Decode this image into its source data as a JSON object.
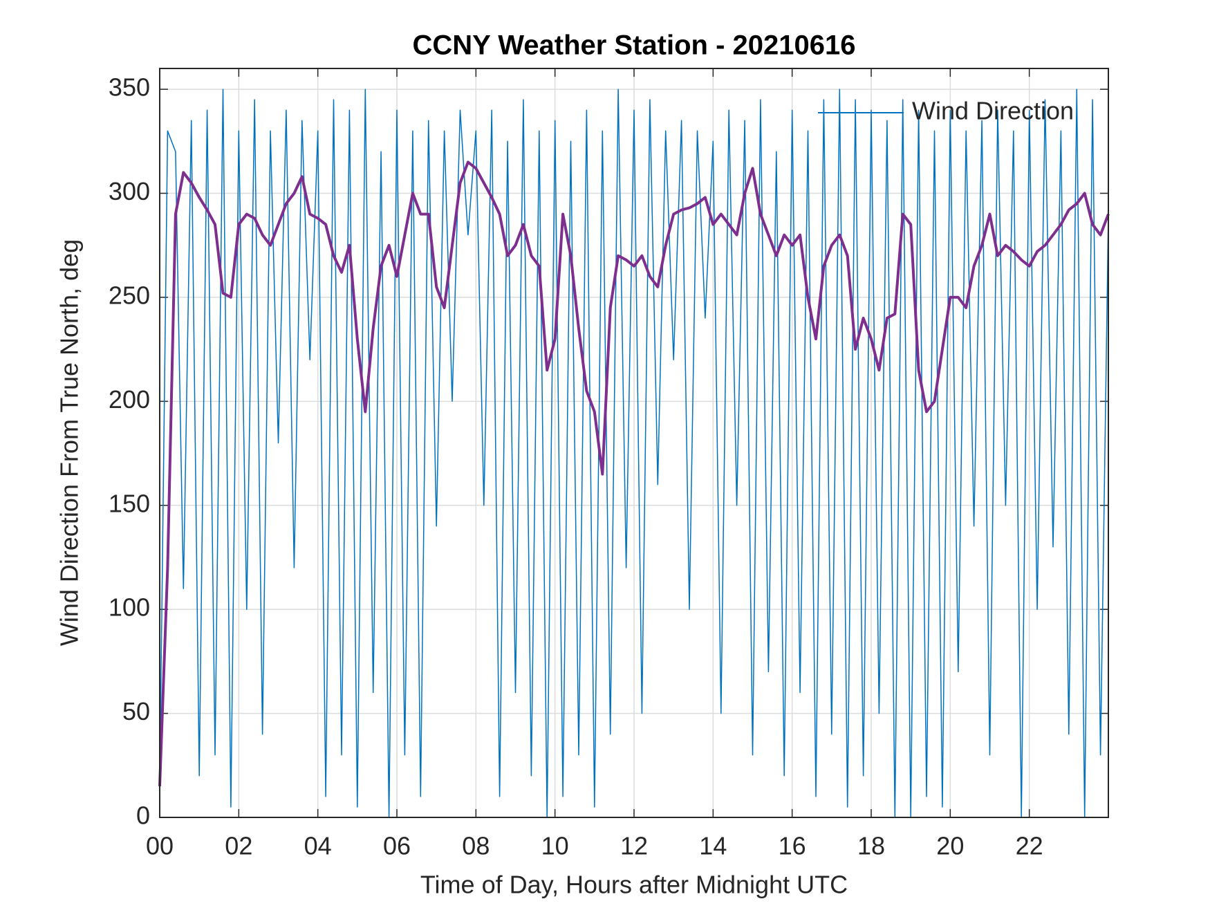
{
  "chart_data": {
    "type": "line",
    "title": "CCNY Weather Station - 20210616",
    "x_label": "Time of Day, Hours after Midnight UTC",
    "y_label": "Wind Direction From True North, deg",
    "xlim": [
      0,
      24
    ],
    "ylim": [
      0,
      360
    ],
    "xticks": [
      {
        "value": 0,
        "label": "00"
      },
      {
        "value": 2,
        "label": "02"
      },
      {
        "value": 4,
        "label": "04"
      },
      {
        "value": 6,
        "label": "06"
      },
      {
        "value": 8,
        "label": "08"
      },
      {
        "value": 10,
        "label": "10"
      },
      {
        "value": 12,
        "label": "12"
      },
      {
        "value": 14,
        "label": "14"
      },
      {
        "value": 16,
        "label": "16"
      },
      {
        "value": 18,
        "label": "18"
      },
      {
        "value": 20,
        "label": "20"
      },
      {
        "value": 22,
        "label": "22"
      }
    ],
    "yticks": [
      0,
      50,
      100,
      150,
      200,
      250,
      300,
      350
    ],
    "grid": true,
    "legend": "upper right",
    "x": [
      0,
      0.2,
      0.4,
      0.6,
      0.8,
      1,
      1.2,
      1.4,
      1.6,
      1.8,
      2,
      2.2,
      2.4,
      2.6,
      2.8,
      3,
      3.2,
      3.4,
      3.6,
      3.8,
      4,
      4.2,
      4.4,
      4.6,
      4.8,
      5,
      5.2,
      5.4,
      5.6,
      5.8,
      6,
      6.2,
      6.4,
      6.6,
      6.8,
      7,
      7.2,
      7.4,
      7.6,
      7.8,
      8,
      8.2,
      8.4,
      8.6,
      8.8,
      9,
      9.2,
      9.4,
      9.6,
      9.8,
      10,
      10.2,
      10.4,
      10.6,
      10.8,
      11,
      11.2,
      11.4,
      11.6,
      11.8,
      12,
      12.2,
      12.4,
      12.6,
      12.8,
      13,
      13.2,
      13.4,
      13.6,
      13.8,
      14,
      14.2,
      14.4,
      14.6,
      14.8,
      15,
      15.2,
      15.4,
      15.6,
      15.8,
      16,
      16.2,
      16.4,
      16.6,
      16.8,
      17,
      17.2,
      17.4,
      17.6,
      17.8,
      18,
      18.2,
      18.4,
      18.6,
      18.8,
      19,
      19.2,
      19.4,
      19.6,
      19.8,
      20,
      20.2,
      20.4,
      20.6,
      20.8,
      21,
      21.2,
      21.4,
      21.6,
      21.8,
      22,
      22.2,
      22.4,
      22.6,
      22.8,
      23,
      23.2,
      23.4,
      23.6,
      23.8,
      24
    ],
    "series": [
      {
        "name": "Wind Direction",
        "color": "#0072bd",
        "width": 1.5,
        "values": [
          15,
          330,
          320,
          110,
          335,
          20,
          340,
          30,
          350,
          5,
          330,
          100,
          345,
          40,
          330,
          180,
          340,
          120,
          335,
          220,
          330,
          10,
          345,
          30,
          340,
          5,
          350,
          60,
          320,
          0,
          340,
          30,
          330,
          10,
          335,
          140,
          330,
          200,
          340,
          280,
          330,
          150,
          340,
          10,
          325,
          60,
          345,
          20,
          330,
          0,
          335,
          10,
          325,
          30,
          340,
          5,
          330,
          40,
          350,
          120,
          340,
          50,
          345,
          160,
          330,
          220,
          335,
          100,
          330,
          240,
          325,
          50,
          340,
          150,
          335,
          30,
          345,
          70,
          320,
          20,
          340,
          60,
          330,
          10,
          345,
          40,
          350,
          5,
          345,
          20,
          340,
          50,
          335,
          0,
          345,
          0,
          340,
          10,
          330,
          5,
          340,
          70,
          330,
          140,
          335,
          30,
          340,
          150,
          330,
          0,
          340,
          100,
          345,
          130,
          330,
          40,
          350,
          0,
          345,
          30,
          290
        ]
      },
      {
        "color": "#7e2f8e",
        "width": 4,
        "values": [
          15,
          120,
          290,
          310,
          305,
          298,
          292,
          285,
          252,
          250,
          285,
          290,
          288,
          280,
          275,
          285,
          295,
          300,
          308,
          290,
          288,
          285,
          270,
          262,
          275,
          230,
          195,
          235,
          265,
          275,
          260,
          280,
          300,
          290,
          290,
          255,
          245,
          275,
          305,
          315,
          312,
          305,
          298,
          290,
          270,
          275,
          285,
          270,
          265,
          215,
          230,
          290,
          270,
          235,
          205,
          195,
          165,
          245,
          270,
          268,
          265,
          270,
          260,
          255,
          275,
          290,
          292,
          293,
          295,
          298,
          285,
          290,
          285,
          280,
          300,
          312,
          290,
          280,
          270,
          280,
          275,
          280,
          250,
          230,
          265,
          275,
          280,
          270,
          225,
          240,
          230,
          215,
          240,
          242,
          290,
          285,
          215,
          195,
          200,
          225,
          250,
          250,
          245,
          265,
          275,
          290,
          270,
          275,
          272,
          268,
          265,
          272,
          275,
          280,
          285,
          292,
          295,
          300,
          285,
          280,
          290
        ]
      }
    ]
  }
}
